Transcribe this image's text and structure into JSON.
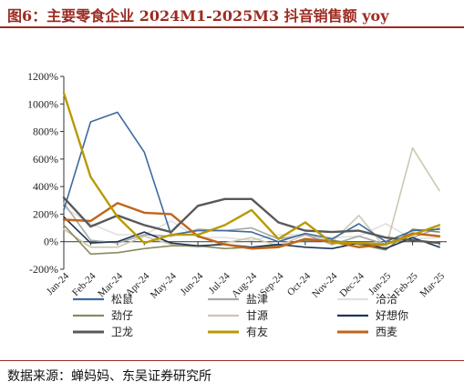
{
  "title": "图6：主要零食企业 2024M1-2025M3 抖音销售额 yoy",
  "source": "数据来源：蝉妈妈、东吴证券研究所",
  "chart_data": {
    "type": "line",
    "title": "",
    "xlabel": "",
    "ylabel": "",
    "ylim": [
      -200,
      1200
    ],
    "yticks": [
      -200,
      0,
      200,
      400,
      600,
      800,
      1000,
      1200
    ],
    "ytick_labels": [
      "-200%",
      "0%",
      "200%",
      "400%",
      "600%",
      "800%",
      "1000%",
      "1200%"
    ],
    "categories": [
      "Jan-24",
      "Feb-24",
      "Mar-24",
      "Apr-24",
      "May-24",
      "Jun-24",
      "Jul-24",
      "Aug-24",
      "Sep-24",
      "Oct-24",
      "Nov-24",
      "Dec-24",
      "Jan-25",
      "Feb-25",
      "Mar-25"
    ],
    "legend_position": "bottom",
    "grid": false,
    "series": [
      {
        "name": "松鼠",
        "color": "#3d6b9e",
        "width": 1.6,
        "values": [
          230,
          870,
          940,
          650,
          50,
          80,
          80,
          70,
          0,
          60,
          20,
          130,
          0,
          80,
          90
        ]
      },
      {
        "name": "盐津",
        "color": "#a9a9a9",
        "width": 1.6,
        "values": [
          280,
          10,
          -10,
          50,
          40,
          90,
          80,
          100,
          20,
          50,
          -20,
          40,
          -20,
          30,
          100
        ]
      },
      {
        "name": "洽洽",
        "color": "#e0e0e0",
        "width": 1.6,
        "values": [
          250,
          130,
          50,
          50,
          150,
          30,
          30,
          10,
          50,
          50,
          30,
          40,
          130,
          20,
          30
        ]
      },
      {
        "name": "劲仔",
        "color": "#8a8a5e",
        "width": 1.6,
        "values": [
          120,
          -90,
          -80,
          -50,
          -30,
          -30,
          -50,
          -40,
          -30,
          10,
          10,
          -20,
          -60,
          90,
          70
        ]
      },
      {
        "name": "甘源",
        "color": "#cdc8b0",
        "width": 1.6,
        "values": [
          90,
          -40,
          -40,
          40,
          -20,
          -40,
          -10,
          30,
          -30,
          50,
          0,
          190,
          -50,
          680,
          370
        ]
      },
      {
        "name": "好想你",
        "color": "#1f3556",
        "width": 1.6,
        "values": [
          180,
          -10,
          0,
          70,
          -10,
          -30,
          -20,
          -40,
          -20,
          -40,
          -50,
          -10,
          -50,
          30,
          -40
        ]
      },
      {
        "name": "卫龙",
        "color": "#595959",
        "width": 2.4,
        "values": [
          320,
          110,
          190,
          120,
          70,
          260,
          310,
          310,
          140,
          80,
          70,
          80,
          30,
          10,
          -10
        ]
      },
      {
        "name": "有友",
        "color": "#b89a00",
        "width": 2.4,
        "values": [
          1080,
          470,
          180,
          -10,
          50,
          50,
          120,
          230,
          20,
          140,
          -10,
          -10,
          -20,
          50,
          120
        ]
      },
      {
        "name": "西麦",
        "color": "#c0651a",
        "width": 2.4,
        "values": [
          160,
          150,
          280,
          210,
          200,
          40,
          -20,
          -50,
          -40,
          20,
          0,
          -40,
          -20,
          60,
          40
        ]
      }
    ]
  }
}
